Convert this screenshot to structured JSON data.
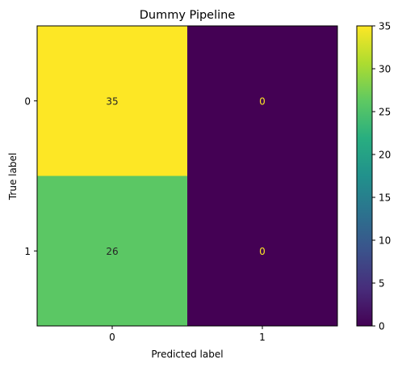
{
  "chart_data": {
    "type": "heatmap",
    "title": "Dummy Pipeline",
    "xlabel": "Predicted label",
    "ylabel": "True label",
    "x_categories": [
      "0",
      "1"
    ],
    "y_categories": [
      "0",
      "1"
    ],
    "matrix": [
      [
        35,
        0
      ],
      [
        26,
        0
      ]
    ],
    "colorbar": {
      "min": 0,
      "max": 35,
      "ticks": [
        0,
        5,
        10,
        15,
        20,
        25,
        30,
        35
      ],
      "colormap": "viridis"
    },
    "colors": {
      "dark_text": "#262626",
      "light_text": "#fde725"
    }
  }
}
